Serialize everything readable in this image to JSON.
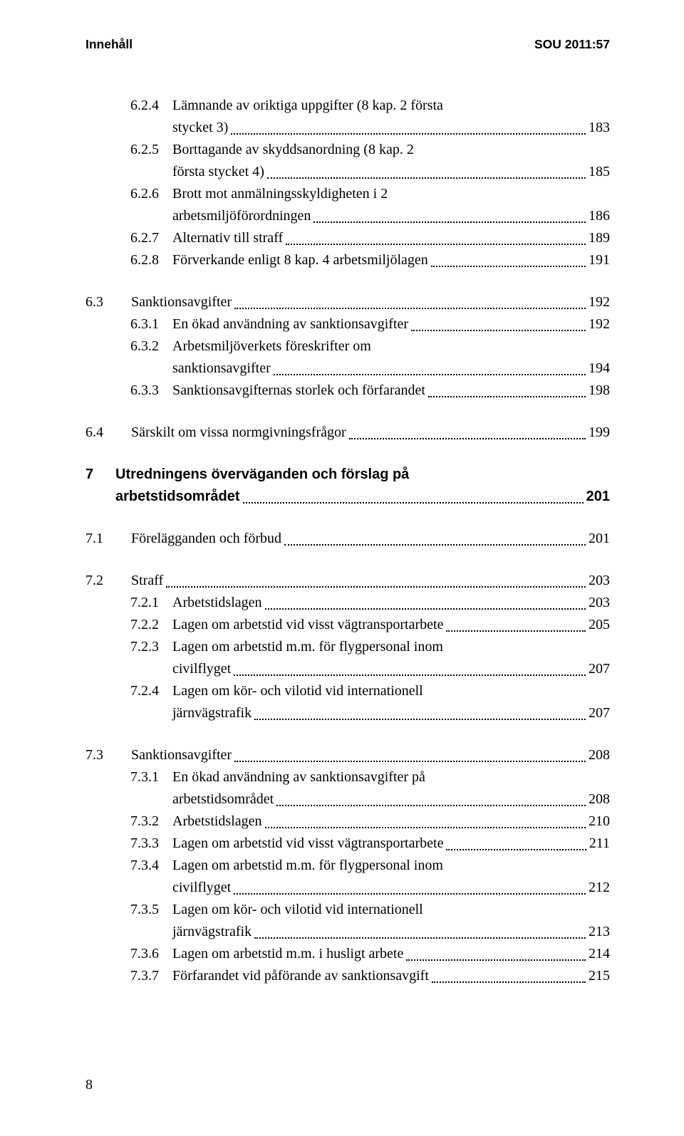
{
  "header": {
    "left": "Innehåll",
    "right": "SOU 2011:57"
  },
  "footer_page": "8",
  "sections": [
    {
      "type": "group",
      "items": [
        {
          "level": 2,
          "num": "6.2.4",
          "label": "Lämnande av oriktiga uppgifter (8 kap. 2 första",
          "cont": "stycket 3)",
          "page": "183"
        },
        {
          "level": 2,
          "num": "6.2.5",
          "label": "Borttagande av skyddsanordning (8 kap. 2",
          "cont": "första stycket 4)",
          "page": "185"
        },
        {
          "level": 2,
          "num": "6.2.6",
          "label": "Brott mot anmälningsskyldigheten i 2",
          "cont": "arbetsmiljöförordningen",
          "page": "186"
        },
        {
          "level": 2,
          "num": "6.2.7",
          "label": "Alternativ till straff",
          "page": "189"
        },
        {
          "level": 2,
          "num": "6.2.8",
          "label": "Förverkande enligt 8 kap. 4 arbetsmiljölagen",
          "page": "191"
        }
      ]
    },
    {
      "type": "group",
      "items": [
        {
          "level": 1,
          "num": "6.3",
          "label": "Sanktionsavgifter",
          "page": "192"
        },
        {
          "level": 2,
          "num": "6.3.1",
          "label": "En ökad användning av sanktionsavgifter",
          "page": "192"
        },
        {
          "level": 2,
          "num": "6.3.2",
          "label": "Arbetsmiljöverkets föreskrifter om",
          "cont": "sanktionsavgifter",
          "page": "194"
        },
        {
          "level": 2,
          "num": "6.3.3",
          "label": "Sanktionsavgifternas storlek och förfarandet",
          "page": "198"
        }
      ]
    },
    {
      "type": "group",
      "items": [
        {
          "level": 1,
          "num": "6.4",
          "label": "Särskilt om vissa normgivningsfrågor",
          "page": "199"
        }
      ]
    },
    {
      "type": "chapter",
      "items": [
        {
          "level": 0,
          "num": "7",
          "label": "Utredningens överväganden och förslag på",
          "cont": "arbetstidsområdet",
          "page": "201"
        }
      ]
    },
    {
      "type": "group",
      "items": [
        {
          "level": 1,
          "num": "7.1",
          "label": "Förelägganden och förbud",
          "page": "201"
        }
      ]
    },
    {
      "type": "group",
      "items": [
        {
          "level": 1,
          "num": "7.2",
          "label": "Straff",
          "page": "203"
        },
        {
          "level": 2,
          "num": "7.2.1",
          "label": "Arbetstidslagen",
          "page": "203"
        },
        {
          "level": 2,
          "num": "7.2.2",
          "label": "Lagen om arbetstid vid visst vägtransportarbete",
          "page": "205"
        },
        {
          "level": 2,
          "num": "7.2.3",
          "label": "Lagen om arbetstid m.m. för flygpersonal inom",
          "cont": "civilflyget",
          "page": "207"
        },
        {
          "level": 2,
          "num": "7.2.4",
          "label": "Lagen om kör- och vilotid vid internationell",
          "cont": "järnvägstrafik",
          "page": "207"
        }
      ]
    },
    {
      "type": "group",
      "items": [
        {
          "level": 1,
          "num": "7.3",
          "label": "Sanktionsavgifter",
          "page": "208"
        },
        {
          "level": 2,
          "num": "7.3.1",
          "label": "En ökad användning av sanktionsavgifter på",
          "cont": "arbetstidsområdet",
          "page": "208"
        },
        {
          "level": 2,
          "num": "7.3.2",
          "label": "Arbetstidslagen",
          "page": "210"
        },
        {
          "level": 2,
          "num": "7.3.3",
          "label": "Lagen om arbetstid vid visst vägtransportarbete",
          "page": "211"
        },
        {
          "level": 2,
          "num": "7.3.4",
          "label": "Lagen om arbetstid m.m. för flygpersonal inom",
          "cont": "civilflyget",
          "page": "212"
        },
        {
          "level": 2,
          "num": "7.3.5",
          "label": "Lagen om kör- och vilotid vid internationell",
          "cont": "järnvägstrafik",
          "page": "213"
        },
        {
          "level": 2,
          "num": "7.3.6",
          "label": "Lagen om arbetstid m.m. i husligt arbete",
          "page": "214"
        },
        {
          "level": 2,
          "num": "7.3.7",
          "label": "Förfarandet vid påförande av sanktionsavgift",
          "page": "215"
        }
      ]
    }
  ]
}
